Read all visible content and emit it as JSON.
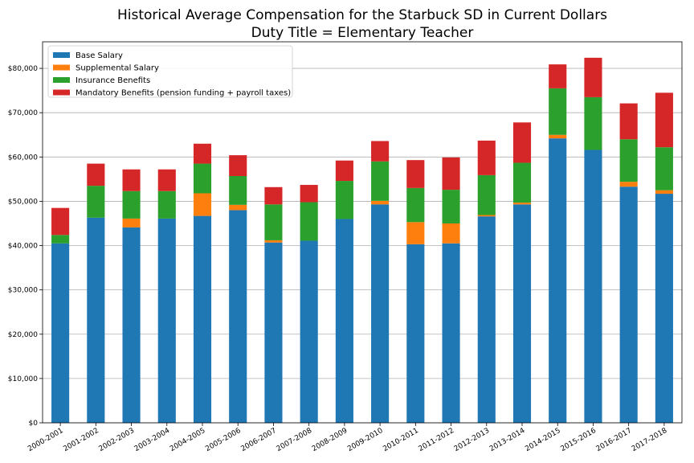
{
  "chart_data": {
    "type": "bar",
    "stacked": true,
    "title": "Historical Average Compensation for the Starbuck SD in Current Dollars",
    "subtitle": "Duty Title = Elementary Teacher",
    "xlabel": "",
    "ylabel": "",
    "ylim": [
      0,
      86000
    ],
    "yticks": [
      0,
      10000,
      20000,
      30000,
      40000,
      50000,
      60000,
      70000,
      80000
    ],
    "ytick_labels": [
      "$0",
      "$10,000",
      "$20,000",
      "$30,000",
      "$40,000",
      "$50,000",
      "$60,000",
      "$70,000",
      "$80,000"
    ],
    "grid": "horizontal",
    "legend_position": "top-left",
    "categories": [
      "2000-2001",
      "2001-2002",
      "2002-2003",
      "2003-2004",
      "2004-2005",
      "2005-2006",
      "2006-2007",
      "2007-2008",
      "2008-2009",
      "2009-2010",
      "2010-2011",
      "2011-2012",
      "2012-2013",
      "2013-2014",
      "2014-2015",
      "2015-2016",
      "2016-2017",
      "2017-2018"
    ],
    "series": [
      {
        "name": "Base Salary",
        "color": "#1f77b4",
        "values": [
          40500,
          46300,
          44100,
          46100,
          46700,
          48000,
          40700,
          41100,
          46000,
          49300,
          40300,
          40500,
          46600,
          49300,
          64200,
          61600,
          53300,
          51700
        ]
      },
      {
        "name": "Supplemental Salary",
        "color": "#ff7f0e",
        "values": [
          0,
          0,
          2000,
          0,
          5100,
          1200,
          500,
          0,
          0,
          800,
          5000,
          4500,
          300,
          400,
          800,
          0,
          1100,
          800
        ]
      },
      {
        "name": "Insurance Benefits",
        "color": "#2ca02c",
        "values": [
          1900,
          7200,
          6200,
          6200,
          6700,
          6500,
          8100,
          8700,
          8600,
          8900,
          7700,
          7600,
          9000,
          9000,
          10500,
          11900,
          9600,
          9700
        ]
      },
      {
        "name": "Mandatory Benefits (pension funding + payroll taxes)",
        "color": "#d62728",
        "values": [
          6100,
          5000,
          4900,
          4900,
          4500,
          4700,
          3900,
          3900,
          4600,
          4600,
          6300,
          7300,
          7800,
          9100,
          5400,
          8900,
          8100,
          12300
        ]
      }
    ]
  }
}
